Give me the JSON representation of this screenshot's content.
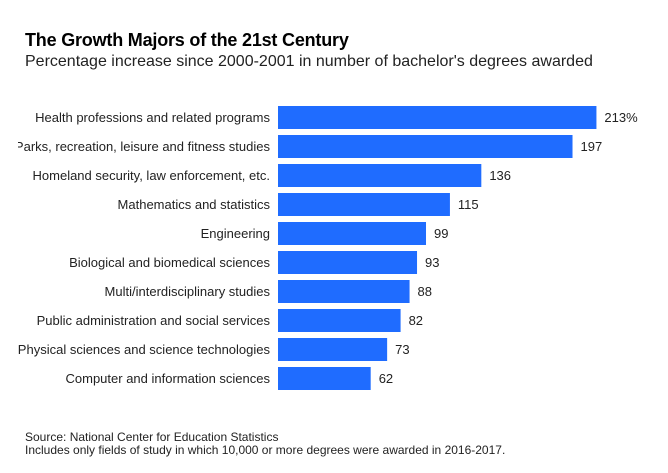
{
  "chart_data": {
    "type": "bar",
    "orientation": "horizontal",
    "title": "The Growth Majors of the 21st Century",
    "subtitle": "Percentage increase since 2000-2001 in number of bachelor's degrees awarded",
    "categories": [
      "Health professions and related programs",
      "Parks, recreation, leisure and fitness studies",
      "Homeland security, law enforcement, etc.",
      "Mathematics and statistics",
      "Engineering",
      "Biological and biomedical sciences",
      "Multi/interdisciplinary studies",
      "Public administration and social services",
      "Physical sciences and science technologies",
      "Computer and information sciences"
    ],
    "values": [
      213,
      197,
      136,
      115,
      99,
      93,
      88,
      82,
      73,
      62
    ],
    "value_labels": [
      "213%",
      "197",
      "136",
      "115",
      "99",
      "93",
      "88",
      "82",
      "73",
      "62"
    ],
    "bar_color": "#1f6cff",
    "grid": false,
    "legend": "none"
  },
  "footer": {
    "source": "Source: National Center for Education Statistics",
    "note": "Includes only fields of study in which 10,000 or more degrees were awarded in 2016-2017."
  }
}
